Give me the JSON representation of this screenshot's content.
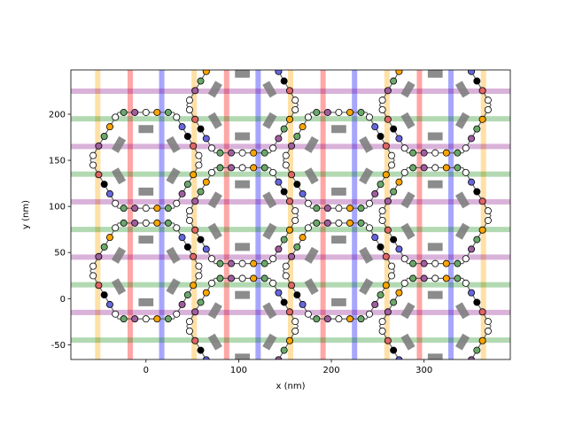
{
  "chart_data": {
    "type": "scatter",
    "title": "",
    "xlabel": "x (nm)",
    "ylabel": "y (nm)",
    "xlim": [
      -81,
      393
    ],
    "ylim": [
      -66,
      248
    ],
    "xticks": [
      0,
      100,
      200,
      300
    ],
    "yticks": [
      -50,
      0,
      50,
      100,
      150,
      200
    ],
    "grid": false,
    "vertical_bands": [
      {
        "color": "#ffa500",
        "x": [
          -52,
          52,
          156,
          260,
          364
        ]
      },
      {
        "color": "#ff0000",
        "x": [
          -17,
          87,
          191,
          295
        ]
      },
      {
        "color": "#0000ff",
        "x": [
          17,
          121,
          225,
          329
        ]
      }
    ],
    "horizontal_bands": [
      {
        "color": "#008000",
        "y": [
          -45,
          15,
          75,
          135,
          195
        ]
      },
      {
        "color": "#800080",
        "y": [
          -15,
          45,
          105,
          165,
          225
        ]
      }
    ],
    "node_colors": {
      "orange": "#ffa500",
      "red": "#e06666",
      "blue": "#6666dd",
      "green": "#6aa86a",
      "purple": "#9f5f9f",
      "black": "#000000",
      "white": "#ffffff",
      "pad": "#808080"
    },
    "edge_color": "#666666",
    "hexagon_centers": [
      [
        0,
        150
      ],
      [
        104,
        90
      ],
      [
        104,
        210
      ],
      [
        208,
        150
      ],
      [
        0,
        30
      ],
      [
        208,
        30
      ],
      [
        104,
        -30
      ],
      [
        312,
        90
      ],
      [
        312,
        -30
      ],
      [
        312,
        210
      ]
    ],
    "hexagon_radius": 120
  }
}
